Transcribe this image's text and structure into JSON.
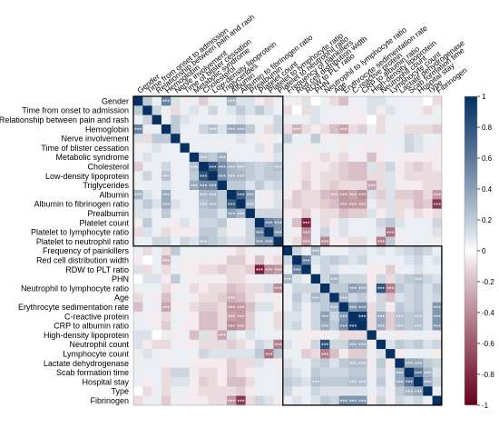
{
  "chart_data": {
    "type": "heatmap",
    "title": "",
    "variables": [
      "Gender",
      "Time from onset to admission",
      "Relationship between pain and rash",
      "Hemoglobin",
      "Nerve involvement",
      "Time of blister cessation",
      "Metabolic syndrome",
      "Cholesterol",
      "Low-density lipoprotein",
      "Triglycerides",
      "Albumin",
      "Albumin to fibrinogen ratio",
      "Prealbumin",
      "Platelet count",
      "Platelet to lymphocyte ratio",
      "Platelet to neutrophil ratio",
      "Frequency of painkillers",
      "Red cell distribution width",
      "RDW to PLT ratio",
      "PHN",
      "Neutrophil to lymphocyte ratio",
      "Age",
      "Erythrocyte sedimentation rate",
      "C-reactive protein",
      "CRP to albumin ratio",
      "High-density lipoprotein",
      "Neutrophil count",
      "Lymphocyte count",
      "Lactate dehydrogenase",
      "Scab formation time",
      "Hospital stay",
      "Type",
      "Fibrinogen"
    ],
    "correlations": [
      [
        1,
        0.2,
        0.05,
        0.55,
        0.1,
        -0.05,
        0.05,
        -0.15,
        0.05,
        0.05,
        0.3,
        0.1,
        0.1,
        -0.05,
        -0.1,
        0.05,
        0.05,
        -0.05,
        0.1,
        0,
        0.05,
        -0.1,
        -0.2,
        0.05,
        0.05,
        0.1,
        0.1,
        0.05,
        0.05,
        0.05,
        0.05,
        0,
        -0.1
      ],
      [
        0.2,
        1,
        0.15,
        0.05,
        -0.1,
        0.05,
        0.1,
        0.05,
        0.15,
        0.05,
        0.1,
        0.2,
        0.1,
        0.2,
        0.1,
        0.05,
        -0.1,
        0,
        -0.1,
        0.1,
        0.05,
        0.05,
        0.05,
        -0.05,
        0.05,
        0.1,
        -0.05,
        0.1,
        0.05,
        0.05,
        -0.05,
        -0.1,
        0.05
      ],
      [
        0.05,
        0.15,
        1,
        0.05,
        0.2,
        0.1,
        0.05,
        0.05,
        0.05,
        0.05,
        0.05,
        0.1,
        0.05,
        0.05,
        0.05,
        0.15,
        0.05,
        0.05,
        0.05,
        0.1,
        0.05,
        -0.05,
        0.05,
        -0.05,
        -0.05,
        0,
        -0.1,
        0.05,
        0.05,
        0.05,
        0.05,
        0.05,
        0.05
      ],
      [
        0.55,
        0.05,
        0.05,
        1,
        0.2,
        0.05,
        0.05,
        0.15,
        0.25,
        0.1,
        0.35,
        0.35,
        0.2,
        0.05,
        -0.1,
        0.15,
        -0.1,
        -0.25,
        -0.1,
        -0.05,
        -0.1,
        -0.2,
        -0.3,
        -0.1,
        -0.15,
        0.05,
        -0.1,
        0.05,
        -0.05,
        -0.1,
        -0.1,
        -0.1,
        -0.15
      ],
      [
        0.1,
        -0.1,
        0.2,
        0.2,
        1,
        0.05,
        0.05,
        0.05,
        0.05,
        0.05,
        0.05,
        0.1,
        0.05,
        -0.05,
        -0.05,
        0.05,
        0.2,
        0.05,
        0.05,
        0.2,
        -0.05,
        0.05,
        -0.05,
        0.05,
        0.05,
        -0.05,
        0.05,
        0.05,
        0.05,
        0.15,
        0.1,
        0.05,
        0.05
      ],
      [
        -0.05,
        0.05,
        0.1,
        0.05,
        0.05,
        1,
        0.05,
        0.05,
        0.05,
        0.05,
        0.05,
        0.05,
        0.05,
        0.1,
        -0.05,
        0.15,
        0.05,
        0.05,
        -0.05,
        0.05,
        0.05,
        0.05,
        -0.05,
        0.05,
        -0.05,
        0.05,
        -0.05,
        0.05,
        0.05,
        0.15,
        0.1,
        0.05,
        -0.05
      ],
      [
        0.05,
        0.1,
        0.05,
        0.05,
        0.05,
        0.05,
        1,
        0.25,
        0.2,
        0.35,
        0.05,
        0.05,
        0.05,
        0.05,
        -0.05,
        0.1,
        0.05,
        -0.05,
        -0.05,
        -0.05,
        -0.1,
        -0.05,
        -0.1,
        -0.05,
        -0.05,
        -0.2,
        -0.05,
        0.05,
        -0.05,
        -0.05,
        -0.05,
        -0.05,
        -0.05
      ],
      [
        -0.15,
        0.05,
        0.05,
        0.15,
        0.05,
        0.05,
        0.25,
        1,
        0.8,
        0.5,
        0.3,
        0.25,
        0.2,
        0.15,
        0.2,
        0.25,
        0.05,
        -0.05,
        -0.1,
        -0.05,
        -0.05,
        -0.1,
        -0.15,
        -0.2,
        -0.2,
        0.1,
        -0.1,
        0.15,
        -0.05,
        -0.1,
        -0.15,
        -0.1,
        -0.05
      ],
      [
        0.05,
        0.15,
        0.05,
        0.25,
        0.05,
        0.05,
        0.2,
        0.8,
        1,
        0.5,
        0.3,
        0.3,
        0.2,
        0.15,
        0.2,
        0.2,
        0.05,
        -0.05,
        -0.1,
        -0.05,
        -0.1,
        -0.1,
        -0.15,
        -0.2,
        -0.2,
        -0.1,
        -0.1,
        0.1,
        -0.05,
        -0.1,
        -0.1,
        -0.1,
        -0.1
      ],
      [
        0.05,
        0.05,
        0.05,
        0.1,
        0.05,
        0.05,
        0.35,
        0.5,
        0.5,
        1,
        0.2,
        0.2,
        0.1,
        0.2,
        0.1,
        0.15,
        0.05,
        -0.05,
        -0.15,
        -0.05,
        -0.1,
        -0.15,
        -0.1,
        -0.1,
        -0.1,
        -0.3,
        -0.1,
        0.1,
        -0.05,
        -0.05,
        -0.05,
        -0.1,
        -0.1
      ],
      [
        0.3,
        0.1,
        0.05,
        0.35,
        0.05,
        0.05,
        0.05,
        0.3,
        0.3,
        0.2,
        1,
        0.75,
        0.4,
        0.05,
        -0.05,
        0.1,
        -0.05,
        -0.15,
        -0.1,
        -0.1,
        -0.2,
        -0.25,
        -0.35,
        -0.3,
        -0.4,
        0.1,
        -0.15,
        0.1,
        -0.15,
        -0.15,
        -0.2,
        -0.1,
        -0.35
      ],
      [
        0.1,
        0.2,
        0.1,
        0.35,
        0.1,
        0.05,
        0.05,
        0.25,
        0.3,
        0.2,
        0.75,
        1,
        0.3,
        0.05,
        0.05,
        0.1,
        -0.1,
        -0.15,
        -0.1,
        -0.1,
        -0.15,
        -0.2,
        -0.35,
        -0.35,
        -0.35,
        0.05,
        -0.1,
        0.1,
        -0.1,
        -0.1,
        -0.2,
        -0.15,
        -0.75
      ],
      [
        0.1,
        0.1,
        0.05,
        0.2,
        0.05,
        0.05,
        0.05,
        0.2,
        0.2,
        0.1,
        0.4,
        0.3,
        1,
        0.15,
        0.15,
        0.15,
        -0.05,
        -0.05,
        -0.15,
        -0.05,
        -0.1,
        -0.1,
        -0.2,
        -0.15,
        -0.15,
        0.1,
        -0.05,
        0.1,
        -0.1,
        -0.05,
        -0.1,
        -0.05,
        -0.1
      ],
      [
        -0.05,
        0.2,
        0.05,
        0.05,
        -0.05,
        0.1,
        0.05,
        0.15,
        0.15,
        0.2,
        0.05,
        0.05,
        0.15,
        1,
        0.55,
        0.45,
        0.05,
        -0.2,
        -0.85,
        0.05,
        -0.1,
        -0.05,
        0.1,
        0.05,
        0.05,
        0.05,
        0.15,
        0.2,
        0.1,
        0.05,
        0.05,
        0.05,
        0.15
      ],
      [
        -0.1,
        0.1,
        0.05,
        -0.1,
        -0.05,
        -0.05,
        -0.05,
        0.2,
        0.2,
        0.1,
        -0.05,
        0.05,
        0.15,
        0.55,
        1,
        0.45,
        0.05,
        -0.05,
        -0.4,
        0.05,
        0.15,
        0.05,
        0.1,
        0.05,
        0.05,
        0.05,
        0.1,
        -0.5,
        0.05,
        0.05,
        0.05,
        0.05,
        0.1
      ],
      [
        0.05,
        0.05,
        0.15,
        0.15,
        0.05,
        0.15,
        0.1,
        0.25,
        0.2,
        0.15,
        0.1,
        0.1,
        0.15,
        0.45,
        0.45,
        1,
        0.05,
        -0.1,
        -0.35,
        0.05,
        -0.4,
        -0.05,
        -0.05,
        -0.1,
        -0.1,
        0.05,
        -0.45,
        0.2,
        -0.05,
        0.05,
        0.05,
        0.05,
        -0.05
      ],
      [
        0.05,
        -0.1,
        0.05,
        -0.1,
        0.2,
        0.05,
        0.05,
        0.05,
        0.05,
        0.05,
        -0.05,
        -0.1,
        -0.05,
        0.05,
        0.05,
        0.05,
        1,
        0.15,
        0.05,
        0.3,
        0.05,
        0.05,
        0.05,
        0.1,
        0.1,
        0.05,
        0.1,
        0.05,
        0.1,
        0.15,
        0.2,
        0.15,
        0.05
      ],
      [
        -0.05,
        0,
        0.05,
        -0.25,
        0.05,
        0.05,
        -0.05,
        -0.05,
        -0.05,
        -0.05,
        -0.15,
        -0.15,
        -0.05,
        -0.2,
        -0.05,
        -0.1,
        0.15,
        1,
        0.55,
        0.1,
        0.15,
        0.2,
        0.15,
        0.1,
        0.15,
        0.05,
        0.05,
        0.05,
        0.05,
        0.1,
        0.15,
        0.05,
        0.1
      ],
      [
        0.1,
        -0.1,
        0.05,
        -0.1,
        0.05,
        -0.05,
        -0.05,
        -0.1,
        -0.1,
        -0.15,
        -0.1,
        -0.1,
        -0.15,
        -0.85,
        -0.4,
        -0.35,
        0.05,
        0.55,
        1,
        0.05,
        0.15,
        0.1,
        0.05,
        0.05,
        0.05,
        -0.05,
        -0.05,
        -0.15,
        0.05,
        0.05,
        0.1,
        0.05,
        0.05
      ],
      [
        0,
        0.1,
        0.1,
        -0.05,
        0.2,
        0.05,
        -0.05,
        -0.05,
        -0.05,
        -0.05,
        -0.1,
        -0.1,
        -0.05,
        0.05,
        0.05,
        0.05,
        0.3,
        0.1,
        0.05,
        1,
        0.15,
        0.3,
        0.15,
        0.15,
        0.15,
        -0.05,
        0.15,
        -0.1,
        0.15,
        0.2,
        0.25,
        0.15,
        0.1
      ],
      [
        0.05,
        0.05,
        0.05,
        -0.1,
        -0.05,
        0.05,
        -0.1,
        -0.05,
        -0.1,
        -0.1,
        -0.2,
        -0.15,
        -0.1,
        -0.1,
        0.15,
        -0.4,
        0.05,
        0.15,
        0.15,
        0.15,
        1,
        0.2,
        0.2,
        0.4,
        0.35,
        -0.05,
        0.8,
        -0.45,
        0.2,
        0.15,
        0.2,
        0.1,
        0.2
      ],
      [
        -0.1,
        0.05,
        -0.05,
        -0.2,
        0.05,
        0.05,
        -0.05,
        -0.1,
        -0.1,
        -0.15,
        -0.25,
        -0.2,
        -0.1,
        -0.05,
        0.05,
        -0.05,
        0.05,
        0.2,
        0.1,
        0.3,
        0.2,
        1,
        0.3,
        0.15,
        0.2,
        0.05,
        0.15,
        -0.2,
        0.1,
        0.15,
        0.2,
        0.1,
        0.15
      ],
      [
        -0.2,
        0.05,
        0.05,
        -0.3,
        -0.05,
        -0.05,
        -0.1,
        -0.15,
        -0.15,
        -0.1,
        -0.35,
        -0.35,
        -0.2,
        0.1,
        0.1,
        -0.05,
        0.05,
        0.15,
        0.05,
        0.15,
        0.2,
        0.3,
        1,
        0.45,
        0.5,
        -0.1,
        0.15,
        -0.05,
        0.2,
        0.15,
        0.2,
        0.1,
        0.45
      ],
      [
        0.05,
        -0.05,
        -0.05,
        -0.1,
        0.05,
        0.05,
        -0.05,
        -0.2,
        -0.2,
        -0.1,
        -0.3,
        -0.35,
        -0.15,
        0.05,
        0.05,
        -0.1,
        0.1,
        0.1,
        0.05,
        0.15,
        0.4,
        0.15,
        0.45,
        1,
        0.95,
        -0.1,
        0.35,
        -0.15,
        0.25,
        0.2,
        0.25,
        0.1,
        0.45
      ],
      [
        0.05,
        0.05,
        -0.05,
        -0.15,
        0.05,
        -0.05,
        -0.05,
        -0.2,
        -0.2,
        -0.1,
        -0.4,
        -0.35,
        -0.15,
        0.05,
        0.05,
        -0.1,
        0.1,
        0.15,
        0.05,
        0.15,
        0.35,
        0.2,
        0.5,
        0.95,
        1,
        -0.1,
        0.35,
        -0.15,
        0.25,
        0.2,
        0.25,
        0.1,
        0.45
      ],
      [
        0.1,
        0.1,
        0,
        0.05,
        -0.05,
        0.05,
        -0.2,
        0.1,
        -0.1,
        -0.3,
        0.1,
        0.05,
        0.1,
        0.05,
        0.05,
        0.05,
        0.05,
        0.05,
        -0.05,
        -0.05,
        -0.05,
        0.05,
        -0.1,
        -0.1,
        -0.1,
        1,
        -0.05,
        0.05,
        -0.05,
        0.05,
        0.05,
        0.05,
        -0.05
      ],
      [
        0.1,
        -0.05,
        -0.1,
        -0.1,
        0.05,
        -0.05,
        -0.05,
        -0.1,
        -0.1,
        -0.1,
        -0.15,
        -0.1,
        -0.05,
        0.15,
        0.1,
        -0.45,
        0.1,
        0.05,
        -0.05,
        0.15,
        0.8,
        0.15,
        0.15,
        0.35,
        0.35,
        -0.05,
        1,
        0.1,
        0.2,
        0.15,
        0.2,
        0.1,
        0.15
      ],
      [
        0.05,
        0.1,
        0.05,
        0.05,
        0.05,
        0.05,
        0.05,
        0.15,
        0.1,
        0.1,
        0.1,
        0.1,
        0.1,
        0.2,
        -0.5,
        0.2,
        0.05,
        0.05,
        -0.15,
        -0.1,
        -0.45,
        -0.2,
        -0.05,
        -0.15,
        -0.15,
        0.05,
        0.1,
        1,
        -0.05,
        0.05,
        0.05,
        0.05,
        -0.05
      ],
      [
        0.05,
        0.05,
        0.05,
        -0.05,
        0.05,
        0.05,
        -0.05,
        -0.05,
        -0.05,
        -0.05,
        -0.15,
        -0.1,
        -0.1,
        0.1,
        0.05,
        -0.05,
        0.1,
        0.05,
        0.05,
        0.15,
        0.2,
        0.1,
        0.2,
        0.25,
        0.25,
        -0.05,
        0.2,
        -0.05,
        1,
        0.35,
        0.35,
        0.2,
        0.15
      ],
      [
        0.05,
        0.05,
        0.05,
        -0.1,
        0.15,
        0.15,
        -0.05,
        -0.1,
        -0.1,
        -0.05,
        -0.15,
        -0.1,
        -0.05,
        0.05,
        0.05,
        0.05,
        0.15,
        0.1,
        0.05,
        0.2,
        0.15,
        0.15,
        0.15,
        0.2,
        0.2,
        0.05,
        0.15,
        0.05,
        0.35,
        1,
        0.6,
        0.3,
        0.1
      ],
      [
        0.05,
        -0.05,
        0.05,
        -0.1,
        0.1,
        0.1,
        -0.05,
        -0.15,
        -0.1,
        -0.05,
        -0.2,
        -0.2,
        -0.1,
        0.05,
        0.05,
        0.05,
        0.2,
        0.15,
        0.1,
        0.25,
        0.2,
        0.2,
        0.2,
        0.25,
        0.25,
        0.05,
        0.2,
        0.05,
        0.35,
        0.6,
        1,
        0.35,
        0.15
      ],
      [
        0,
        -0.1,
        0.05,
        -0.1,
        0.05,
        0.05,
        -0.05,
        -0.1,
        -0.1,
        -0.1,
        -0.1,
        -0.15,
        -0.05,
        0.05,
        0.05,
        0.05,
        0.15,
        0.05,
        0.05,
        0.15,
        0.1,
        0.1,
        0.1,
        0.1,
        0.1,
        0.05,
        0.1,
        0.05,
        0.2,
        0.3,
        0.35,
        1,
        0.05
      ],
      [
        -0.1,
        0.05,
        0.05,
        -0.15,
        0.05,
        -0.05,
        -0.05,
        -0.05,
        -0.1,
        -0.1,
        -0.35,
        -0.75,
        -0.1,
        0.15,
        0.1,
        -0.05,
        0.05,
        0.1,
        0.05,
        0.1,
        0.2,
        0.15,
        0.45,
        0.45,
        0.45,
        -0.05,
        0.15,
        -0.05,
        0.15,
        0.1,
        0.15,
        0.05,
        1
      ]
    ],
    "clusters": [
      [
        0,
        15
      ],
      [
        16,
        32
      ]
    ],
    "colorbar": {
      "range": [
        -1,
        1
      ],
      "ticks": [
        "1",
        "0.8",
        "0.6",
        "0.4",
        "0.2",
        "0",
        "-0.2",
        "-0.4",
        "-0.6",
        "-0.8",
        "-1"
      ],
      "negative_color": "#67001f",
      "neutral_color": "#ffffff",
      "positive_color": "#053061"
    },
    "significance_marker": "***",
    "significance_threshold_abs_r": 0.25,
    "grid": false,
    "legend_position": "right"
  }
}
